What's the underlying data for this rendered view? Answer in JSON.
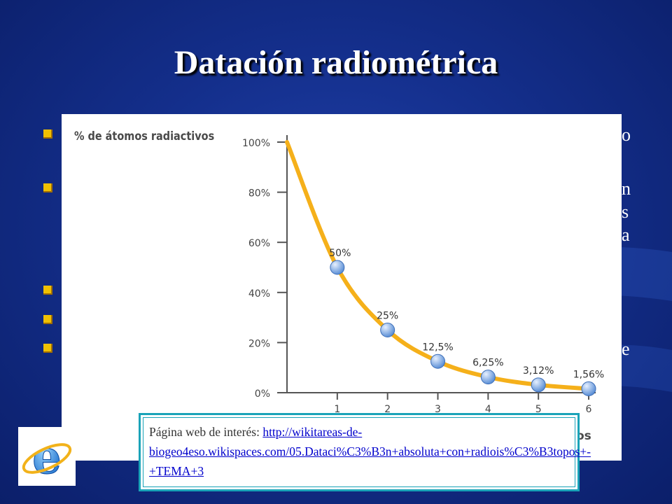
{
  "slide": {
    "title": "Datación radiométrica",
    "bullet_tails": [
      "o",
      "n",
      "s",
      "a",
      "e"
    ]
  },
  "chart_data": {
    "type": "line",
    "ylabel": "% de átomos radiactivos",
    "xlabel": "os",
    "y_ticks": [
      "0%",
      "20%",
      "40%",
      "60%",
      "80%",
      "100%"
    ],
    "x_ticks": [
      "1",
      "2",
      "3",
      "4",
      "5",
      "6"
    ],
    "ylim": [
      0,
      100
    ],
    "xlim": [
      0,
      6
    ],
    "x": [
      0,
      1,
      2,
      3,
      4,
      5,
      6
    ],
    "values": [
      100,
      50,
      25,
      12.5,
      6.25,
      3.12,
      1.56
    ],
    "data_labels": [
      "",
      "50%",
      "25%",
      "12,5%",
      "6,25%",
      "3,12%",
      "1,56%"
    ],
    "line_color": "#f5b01a",
    "marker_color": "#5b8fd6"
  },
  "link_box": {
    "label": "Página web de interés: ",
    "url_text": "http://wikitareas-de-biogeo4eso.wikispaces.com/05.Dataci%C3%B3n+absoluta+con+radiois%C3%B3topos+-+TEMA+3"
  },
  "icons": {
    "browser_logo": "internet-explorer-icon"
  }
}
